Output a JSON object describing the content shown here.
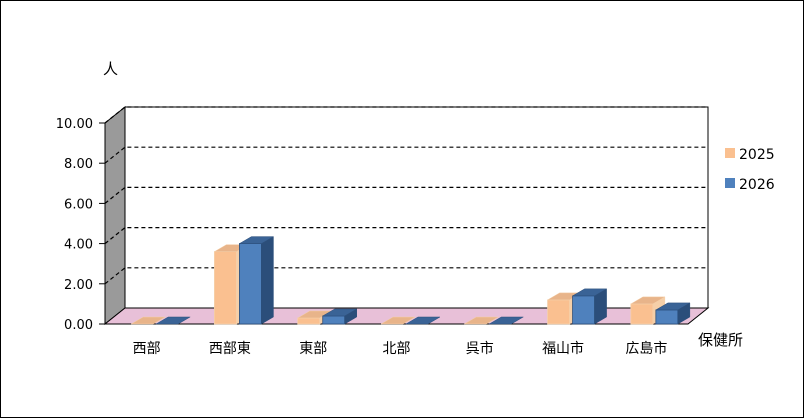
{
  "chart_data": {
    "type": "bar",
    "style": "3d-clustered",
    "categories": [
      "西部",
      "西部東",
      "東部",
      "北部",
      "呉市",
      "福山市",
      "広島市"
    ],
    "series": [
      {
        "name": "2025",
        "values": [
          0,
          3.6,
          0.3,
          0,
          0,
          1.2,
          1.0
        ],
        "color": "#FAC090",
        "top_color": "#E8B48A",
        "side_color": "#F5CFA8"
      },
      {
        "name": "2026",
        "values": [
          0,
          4.0,
          0.4,
          0,
          0,
          1.4,
          0.7
        ],
        "color": "#4F81BD",
        "top_color": "#3A6396",
        "side_color": "#2B4E7A"
      }
    ],
    "ylim": [
      0,
      10
    ],
    "yticks": [
      "0.00",
      "2.00",
      "4.00",
      "6.00",
      "8.00",
      "10.00"
    ],
    "ylabel": "人",
    "xlabel": "保健所",
    "grid": true,
    "legend_position": "right",
    "colors": {
      "wall": "#ffffff",
      "side_wall": "#9a9a9a",
      "floor": "#E8C0D8",
      "grid": "#000000"
    }
  }
}
